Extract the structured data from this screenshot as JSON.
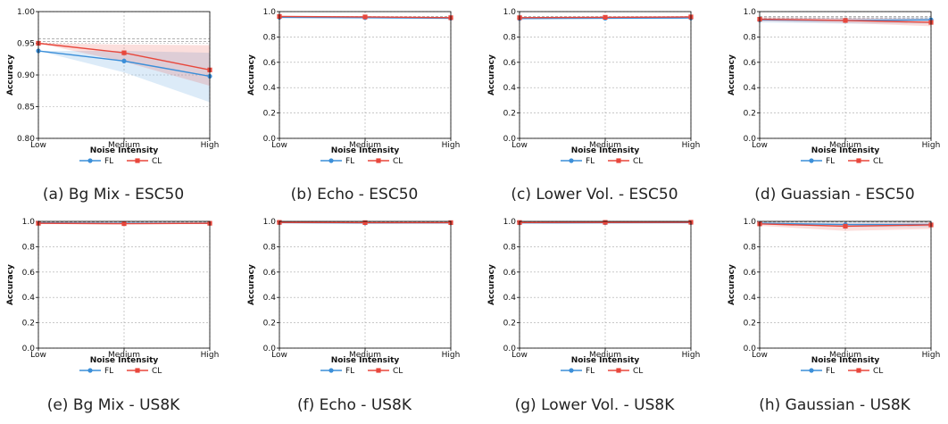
{
  "figure": {
    "colors": {
      "FL": "#3b8fd9",
      "CL": "#e8473c",
      "grid": "#a8a8a8",
      "ref": "#999999"
    }
  },
  "chart_data": [
    {
      "type": "line",
      "caption": "(a) Bg Mix - ESC50",
      "xlabel": "Noise Intensity",
      "ylabel": "Accuracy",
      "categories": [
        "Low",
        "Medium",
        "High"
      ],
      "ylim": [
        0.8,
        1.0
      ],
      "yticks": [
        "0.80",
        "0.85",
        "0.90",
        "0.95",
        "1.00"
      ],
      "grid": true,
      "legend": "bottom-center",
      "reference_lines": [
        0.957,
        0.953
      ],
      "series": [
        {
          "name": "FL",
          "values": [
            0.938,
            0.922,
            0.898
          ],
          "band": [
            [
              0.938,
              0.938
            ],
            [
              0.904,
              0.938
            ],
            [
              0.857,
              0.935
            ]
          ]
        },
        {
          "name": "CL",
          "values": [
            0.95,
            0.935,
            0.908
          ],
          "band": [
            [
              0.95,
              0.95
            ],
            [
              0.921,
              0.948
            ],
            [
              0.883,
              0.947
            ]
          ]
        }
      ]
    },
    {
      "type": "line",
      "caption": "(b) Echo - ESC50",
      "xlabel": "Noise Intensity",
      "ylabel": "Accuracy",
      "categories": [
        "Low",
        "Medium",
        "High"
      ],
      "ylim": [
        0.0,
        1.0
      ],
      "yticks": [
        "0.0",
        "0.2",
        "0.4",
        "0.6",
        "0.8",
        "1.0"
      ],
      "grid": true,
      "legend": "bottom-center",
      "reference_lines": [
        0.96
      ],
      "series": [
        {
          "name": "FL",
          "values": [
            0.955,
            0.952,
            0.948
          ],
          "band": [
            [
              0.95,
              0.96
            ],
            [
              0.945,
              0.958
            ],
            [
              0.94,
              0.955
            ]
          ]
        },
        {
          "name": "CL",
          "values": [
            0.962,
            0.958,
            0.952
          ],
          "band": [
            [
              0.955,
              0.966
            ],
            [
              0.95,
              0.963
            ],
            [
              0.944,
              0.958
            ]
          ]
        }
      ]
    },
    {
      "type": "line",
      "caption": "(c) Lower Vol. - ESC50",
      "xlabel": "Noise Intensity",
      "ylabel": "Accuracy",
      "categories": [
        "Low",
        "Medium",
        "High"
      ],
      "ylim": [
        0.0,
        1.0
      ],
      "yticks": [
        "0.0",
        "0.2",
        "0.4",
        "0.6",
        "0.8",
        "1.0"
      ],
      "grid": true,
      "legend": "bottom-center",
      "reference_lines": [
        0.96
      ],
      "series": [
        {
          "name": "FL",
          "values": [
            0.945,
            0.948,
            0.95
          ],
          "band": [
            [
              0.94,
              0.95
            ],
            [
              0.943,
              0.953
            ],
            [
              0.945,
              0.955
            ]
          ]
        },
        {
          "name": "CL",
          "values": [
            0.952,
            0.955,
            0.958
          ],
          "band": [
            [
              0.947,
              0.958
            ],
            [
              0.95,
              0.96
            ],
            [
              0.953,
              0.963
            ]
          ]
        }
      ]
    },
    {
      "type": "line",
      "caption": "(d) Guassian - ESC50",
      "xlabel": "Noise Intensity",
      "ylabel": "Accuracy",
      "categories": [
        "Low",
        "Medium",
        "High"
      ],
      "ylim": [
        0.0,
        1.0
      ],
      "yticks": [
        "0.0",
        "0.2",
        "0.4",
        "0.6",
        "0.8",
        "1.0"
      ],
      "grid": true,
      "legend": "bottom-center",
      "reference_lines": [
        0.96,
        0.95
      ],
      "series": [
        {
          "name": "FL",
          "values": [
            0.935,
            0.93,
            0.935
          ],
          "band": [
            [
              0.915,
              0.95
            ],
            [
              0.905,
              0.95
            ],
            [
              0.905,
              0.955
            ]
          ]
        },
        {
          "name": "CL",
          "values": [
            0.94,
            0.93,
            0.915
          ],
          "band": [
            [
              0.925,
              0.955
            ],
            [
              0.91,
              0.95
            ],
            [
              0.885,
              0.945
            ]
          ]
        }
      ]
    },
    {
      "type": "line",
      "caption": "(e) Bg Mix - US8K",
      "xlabel": "Noise Intensity",
      "ylabel": "Accuracy",
      "categories": [
        "Low",
        "Medium",
        "High"
      ],
      "ylim": [
        0.0,
        1.0
      ],
      "yticks": [
        "0.0",
        "0.2",
        "0.4",
        "0.6",
        "0.8",
        "1.0"
      ],
      "grid": true,
      "legend": "bottom-center",
      "reference_lines": [
        0.995
      ],
      "series": [
        {
          "name": "FL",
          "values": [
            0.988,
            0.985,
            0.985
          ],
          "band": [
            [
              0.983,
              0.993
            ],
            [
              0.98,
              0.99
            ],
            [
              0.98,
              0.99
            ]
          ]
        },
        {
          "name": "CL",
          "values": [
            0.985,
            0.982,
            0.985
          ],
          "band": [
            [
              0.98,
              0.99
            ],
            [
              0.976,
              0.988
            ],
            [
              0.98,
              0.99
            ]
          ]
        }
      ]
    },
    {
      "type": "line",
      "caption": "(f) Echo - US8K",
      "xlabel": "Noise Intensity",
      "ylabel": "Accuracy",
      "categories": [
        "Low",
        "Medium",
        "High"
      ],
      "ylim": [
        0.0,
        1.0
      ],
      "yticks": [
        "0.0",
        "0.2",
        "0.4",
        "0.6",
        "0.8",
        "1.0"
      ],
      "grid": true,
      "legend": "bottom-center",
      "reference_lines": [
        0.995
      ],
      "series": [
        {
          "name": "FL",
          "values": [
            0.99,
            0.987,
            0.988
          ],
          "band": [
            [
              0.985,
              0.995
            ],
            [
              0.982,
              0.992
            ],
            [
              0.983,
              0.993
            ]
          ]
        },
        {
          "name": "CL",
          "values": [
            0.992,
            0.99,
            0.99
          ],
          "band": [
            [
              0.987,
              0.996
            ],
            [
              0.985,
              0.994
            ],
            [
              0.985,
              0.994
            ]
          ]
        }
      ]
    },
    {
      "type": "line",
      "caption": "(g) Lower Vol. - US8K",
      "xlabel": "Noise Intensity",
      "ylabel": "Accuracy",
      "categories": [
        "Low",
        "Medium",
        "High"
      ],
      "ylim": [
        0.0,
        1.0
      ],
      "yticks": [
        "0.0",
        "0.2",
        "0.4",
        "0.6",
        "0.8",
        "1.0"
      ],
      "grid": true,
      "legend": "bottom-center",
      "reference_lines": [
        0.995
      ],
      "series": [
        {
          "name": "FL",
          "values": [
            0.988,
            0.989,
            0.99
          ],
          "band": [
            [
              0.983,
              0.993
            ],
            [
              0.984,
              0.994
            ],
            [
              0.985,
              0.995
            ]
          ]
        },
        {
          "name": "CL",
          "values": [
            0.991,
            0.992,
            0.993
          ],
          "band": [
            [
              0.986,
              0.996
            ],
            [
              0.987,
              0.996
            ],
            [
              0.988,
              0.997
            ]
          ]
        }
      ]
    },
    {
      "type": "line",
      "caption": "(h) Gaussian - US8K",
      "xlabel": "Noise Intensity",
      "ylabel": "Accuracy",
      "categories": [
        "Low",
        "Medium",
        "High"
      ],
      "ylim": [
        0.0,
        1.0
      ],
      "yticks": [
        "0.0",
        "0.2",
        "0.4",
        "0.6",
        "0.8",
        "1.0"
      ],
      "grid": true,
      "legend": "bottom-center",
      "reference_lines": [
        0.995
      ],
      "series": [
        {
          "name": "FL",
          "values": [
            0.985,
            0.975,
            0.975
          ],
          "band": [
            [
              0.975,
              0.992
            ],
            [
              0.955,
              0.99
            ],
            [
              0.955,
              0.99
            ]
          ]
        },
        {
          "name": "CL",
          "values": [
            0.98,
            0.962,
            0.972
          ],
          "band": [
            [
              0.965,
              0.99
            ],
            [
              0.925,
              0.985
            ],
            [
              0.94,
              0.99
            ]
          ]
        }
      ]
    }
  ]
}
